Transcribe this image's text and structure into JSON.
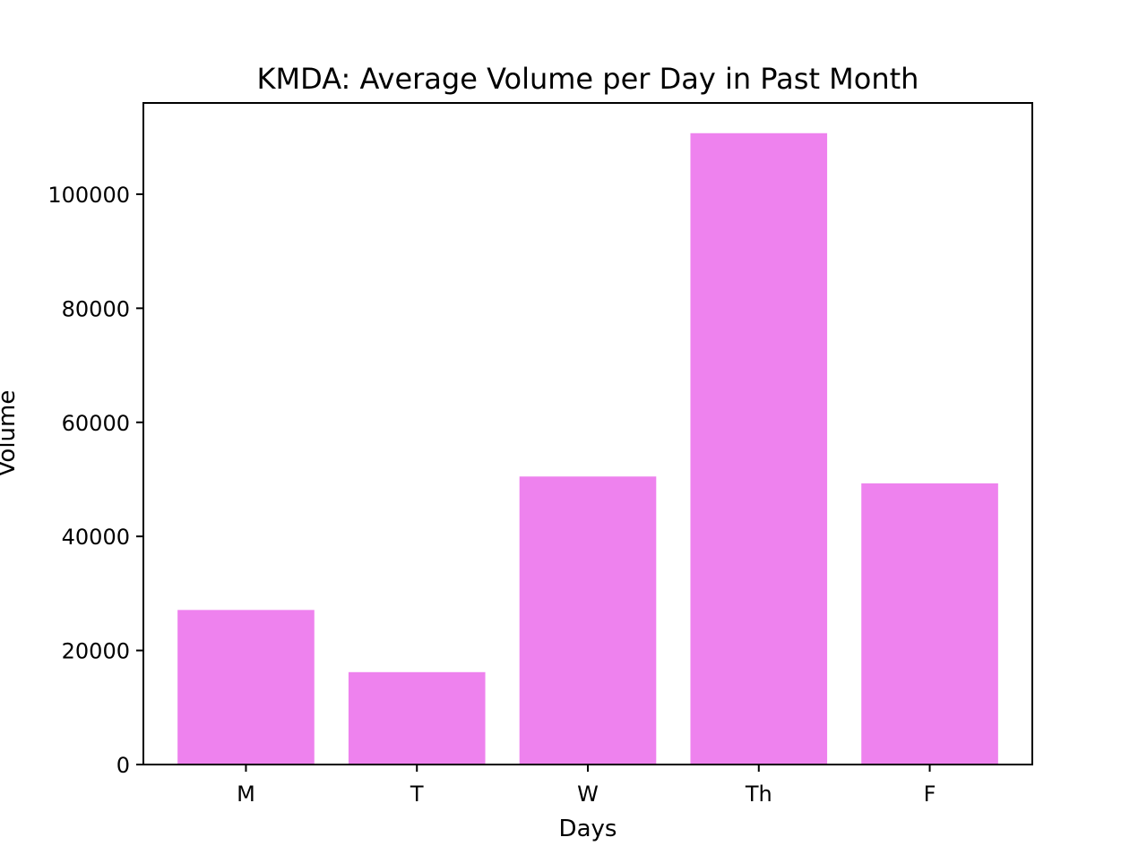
{
  "chart_data": {
    "type": "bar",
    "title": "KMDA: Average Volume per Day in Past Month",
    "xlabel": "Days",
    "ylabel": "Volume",
    "categories": [
      "M",
      "T",
      "W",
      "Th",
      "F"
    ],
    "values": [
      27100,
      16200,
      50500,
      110700,
      49300
    ],
    "ylim": [
      0,
      116000
    ],
    "yticks": [
      0,
      20000,
      40000,
      60000,
      80000,
      100000
    ],
    "ytick_labels": [
      "0",
      "20000",
      "40000",
      "60000",
      "80000",
      "100000"
    ],
    "bar_color": "#ee82ee",
    "grid": false,
    "legend": false
  }
}
